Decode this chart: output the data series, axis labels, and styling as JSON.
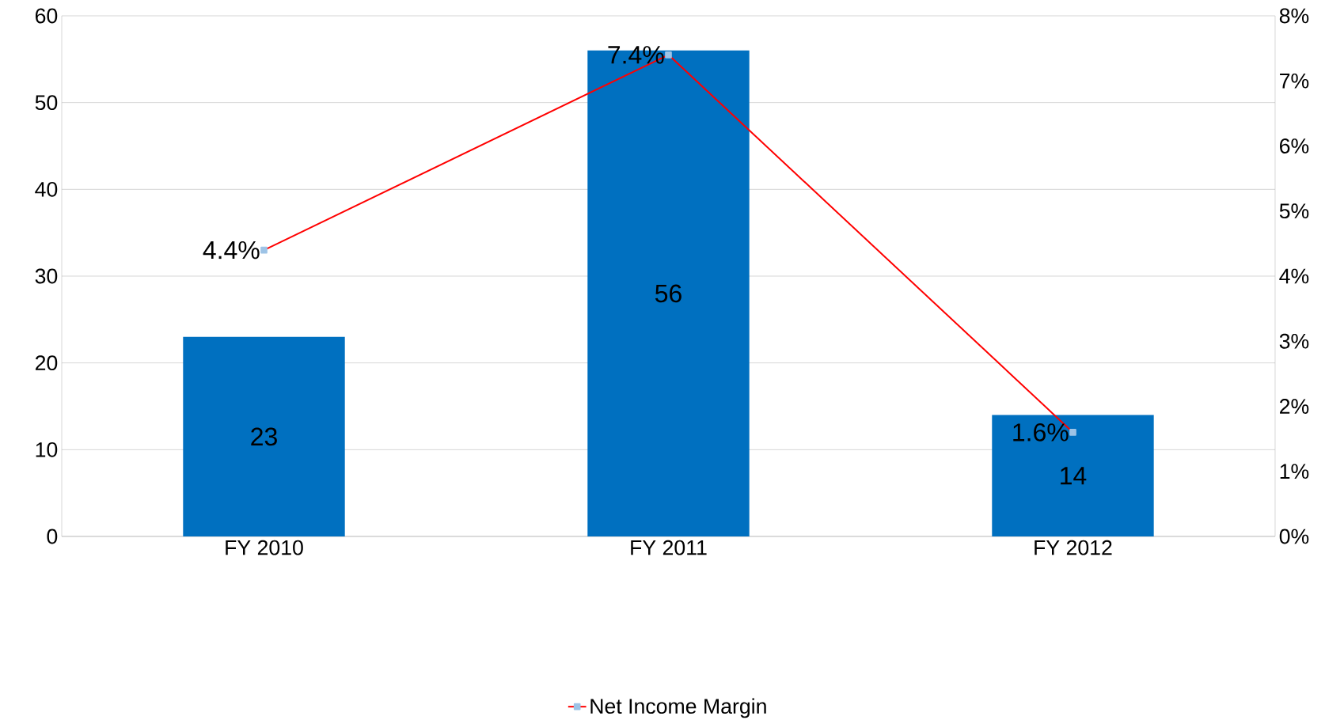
{
  "chart_data": {
    "type": "bar",
    "categories": [
      "FY 2010",
      "FY 2011",
      "FY 2012"
    ],
    "ylim": [
      0,
      60
    ],
    "yticks": [
      0,
      10,
      20,
      30,
      40,
      50,
      60
    ],
    "y2lim": [
      0,
      8
    ],
    "y2ticks": [
      {
        "value": 0,
        "label": "0%"
      },
      {
        "value": 1,
        "label": "1%"
      },
      {
        "value": 2,
        "label": "2%"
      },
      {
        "value": 3,
        "label": "3%"
      },
      {
        "value": 4,
        "label": "4%"
      },
      {
        "value": 5,
        "label": "5%"
      },
      {
        "value": 6,
        "label": "6%"
      },
      {
        "value": 7,
        "label": "7%"
      },
      {
        "value": 8,
        "label": "8%"
      }
    ],
    "grid": "y",
    "legend": "bottom",
    "series": [
      {
        "color": "#0070c0",
        "values": [
          23,
          56,
          14
        ],
        "value_labels": [
          "23",
          "56",
          "14"
        ]
      },
      {
        "name": "Net Income Margin",
        "type": "line",
        "axis": "y2",
        "color": "#ff0000",
        "marker": "square",
        "values": [
          4.4,
          7.4,
          1.6
        ],
        "value_labels": [
          "4.4%",
          "7.4%",
          "1.6%"
        ]
      }
    ]
  }
}
